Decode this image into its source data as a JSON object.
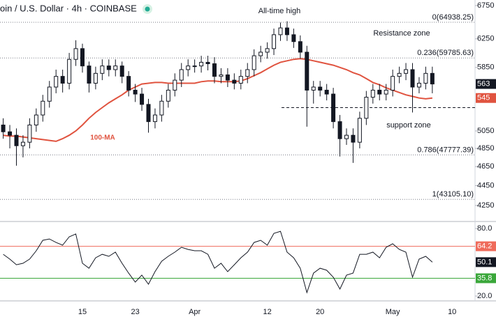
{
  "chart_data": [
    {
      "type": "candlestick",
      "title": "oin / U.S. Dollar · 4h · COINBASE",
      "categories": [
        null,
        null,
        null,
        null,
        null,
        null,
        null,
        null,
        null,
        null,
        null,
        null,
        "15",
        null,
        null,
        null,
        null,
        null,
        null,
        null,
        "23",
        null,
        null,
        null,
        null,
        null,
        null,
        null,
        null,
        "Apr",
        null,
        null,
        null,
        null,
        null,
        null,
        null,
        null,
        null,
        null,
        "12",
        null,
        null,
        null,
        null,
        null,
        null,
        null,
        "20",
        null,
        null,
        null,
        null,
        null,
        null,
        null,
        null,
        null,
        null,
        "May",
        null,
        null,
        null,
        null,
        null,
        null,
        null,
        null,
        "10"
      ],
      "open": [
        51200,
        50400,
        50000,
        48800,
        49200,
        51200,
        52400,
        54100,
        55900,
        57300,
        56400,
        59600,
        61100,
        58700,
        56400,
        57700,
        58700,
        58200,
        58700,
        57300,
        55500,
        55000,
        53700,
        51600,
        52400,
        54100,
        55500,
        56800,
        58200,
        58700,
        58700,
        59200,
        59000,
        57300,
        57500,
        56800,
        56400,
        57300,
        58200,
        60100,
        60600,
        61100,
        63100,
        64100,
        63100,
        62100,
        60600,
        55500,
        55900,
        55500,
        55000,
        51600,
        49600,
        50000,
        49200,
        52000,
        54600,
        55500,
        55000,
        55500,
        57300,
        57700,
        58200,
        55900,
        56400,
        57700,
        null,
        null,
        null
      ],
      "high": [
        52000,
        51200,
        50800,
        50000,
        52000,
        53200,
        54900,
        56700,
        58200,
        58200,
        60500,
        62300,
        61800,
        59300,
        58600,
        59600,
        59600,
        59600,
        59300,
        58000,
        56300,
        55800,
        54400,
        53200,
        54900,
        56300,
        57700,
        59100,
        59600,
        59600,
        60100,
        60100,
        59900,
        58400,
        58400,
        57700,
        58200,
        59100,
        61000,
        61500,
        62000,
        64000,
        64900,
        65100,
        64000,
        63000,
        61500,
        56700,
        56700,
        56300,
        55800,
        52400,
        50800,
        50800,
        52800,
        55400,
        56300,
        56300,
        56300,
        58200,
        58600,
        59100,
        59100,
        57200,
        58600,
        58600,
        null,
        null,
        null
      ],
      "low": [
        49600,
        48500,
        46600,
        47500,
        48500,
        50400,
        51600,
        53300,
        55100,
        55200,
        55600,
        58700,
        57800,
        55200,
        55600,
        56800,
        57300,
        57300,
        56400,
        54700,
        54000,
        52900,
        50300,
        50800,
        51600,
        53300,
        54700,
        55900,
        57300,
        57800,
        57800,
        58100,
        56400,
        56400,
        55900,
        55600,
        55600,
        56400,
        57300,
        59200,
        59700,
        60200,
        62200,
        62200,
        61200,
        59700,
        51000,
        53800,
        54700,
        54200,
        50800,
        47600,
        48900,
        46900,
        48500,
        51200,
        53800,
        54200,
        54200,
        54700,
        56400,
        56800,
        52700,
        55100,
        55600,
        55100,
        null,
        null,
        null
      ],
      "close": [
        50400,
        50000,
        48800,
        49200,
        51200,
        52400,
        54100,
        55900,
        57300,
        56400,
        59600,
        61100,
        58700,
        56400,
        57700,
        58700,
        58200,
        58700,
        57300,
        55500,
        55000,
        53700,
        51600,
        52400,
        54100,
        55500,
        56800,
        58200,
        58700,
        58700,
        59200,
        59000,
        57300,
        57500,
        56800,
        56400,
        57300,
        58200,
        60100,
        60600,
        61100,
        63100,
        64100,
        63100,
        62100,
        60600,
        55500,
        55900,
        55500,
        55000,
        51600,
        49600,
        50000,
        49200,
        52000,
        54600,
        55500,
        55000,
        55500,
        57300,
        57700,
        58200,
        55900,
        56400,
        57700,
        56300,
        null,
        null,
        null
      ],
      "series": [
        {
          "name": "100-MA",
          "color": "#e0533f",
          "values": [
            50000,
            49900,
            49900,
            49800,
            49700,
            49600,
            49500,
            49400,
            49300,
            49600,
            50000,
            50500,
            51200,
            52000,
            52700,
            53300,
            53900,
            54400,
            54900,
            55500,
            55900,
            56300,
            56400,
            56500,
            56500,
            56400,
            56400,
            56400,
            56400,
            56400,
            56600,
            56700,
            56700,
            56600,
            56600,
            56600,
            56700,
            57000,
            57400,
            57800,
            58300,
            58800,
            59200,
            59400,
            59600,
            59700,
            59600,
            59400,
            59200,
            59000,
            58800,
            58500,
            58200,
            57800,
            57500,
            57000,
            56500,
            56200,
            55800,
            55500,
            55200,
            54900,
            54700,
            54500,
            54400,
            54500,
            null,
            null,
            null
          ]
        }
      ],
      "ylim": [
        40950,
        68380
      ],
      "log_scale": true,
      "yticks": [
        {
          "value": 67500,
          "label": "6750"
        },
        {
          "value": 62500,
          "label": "6250"
        },
        {
          "value": 58500,
          "label": "5850"
        },
        {
          "value": 50500,
          "label": "5050"
        },
        {
          "value": 48500,
          "label": "4850"
        },
        {
          "value": 46500,
          "label": "4650"
        },
        {
          "value": 44500,
          "label": "4450"
        },
        {
          "value": 42500,
          "label": "4250"
        }
      ],
      "fib_levels": [
        {
          "value": 64938.25,
          "label": "0(64938.25)"
        },
        {
          "value": 59785.63,
          "label": "0.236(59785.63)"
        },
        {
          "value": 47777.39,
          "label": "0.786(47777.39)"
        },
        {
          "value": 43105.1,
          "label": "1(43105.10)"
        }
      ],
      "support_line": 53300,
      "annotations": [
        "All-time high",
        "Resistance zone",
        "support zone"
      ],
      "price_labels": [
        {
          "value": 56300,
          "label": "563",
          "color": "#131722"
        },
        {
          "value": 54500,
          "label": "545",
          "color": "#e0533f"
        }
      ],
      "colors": {
        "up": "#ffffff",
        "down": "#131722"
      }
    },
    {
      "type": "line",
      "values": [
        57.1,
        52.8,
        47.8,
        49.1,
        52.8,
        60.2,
        69.5,
        70.7,
        67.6,
        65.2,
        72.6,
        75.1,
        49.1,
        44.7,
        54.0,
        57.1,
        55.3,
        59.0,
        49.1,
        40.4,
        32.4,
        38.6,
        30.5,
        41.7,
        50.9,
        55.3,
        59.0,
        63.3,
        61.4,
        60.2,
        60.2,
        57.1,
        44.7,
        49.1,
        41.7,
        47.8,
        54.0,
        59.0,
        67.6,
        69.5,
        65.2,
        75.7,
        77.5,
        59.0,
        54.0,
        44.7,
        23.1,
        40.4,
        44.7,
        42.9,
        36.7,
        26.2,
        38.6,
        40.4,
        57.1,
        57.1,
        59.0,
        54.0,
        63.3,
        66.4,
        61.4,
        59.0,
        36.7,
        52.8,
        55.3,
        50.1,
        null,
        null,
        null
      ],
      "color": "#131722",
      "ylim": [
        15.7,
        86.2
      ],
      "yticks": [
        {
          "value": 80,
          "label": "80.0"
        },
        {
          "value": 20,
          "label": "20.0"
        }
      ],
      "levels": [
        {
          "value": 64.2,
          "color": "#ef6b5b"
        },
        {
          "value": 35.8,
          "color": "#3aa73a"
        }
      ],
      "last_value": 50.1
    }
  ]
}
